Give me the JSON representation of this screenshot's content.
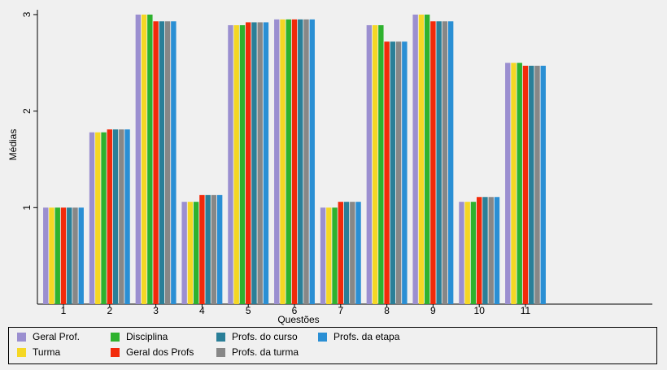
{
  "chart_data": {
    "type": "bar",
    "xlabel": "Questões",
    "ylabel": "Médias",
    "ylim": [
      0,
      3.05
    ],
    "yticks": [
      1,
      2,
      3
    ],
    "categories": [
      "1",
      "2",
      "3",
      "4",
      "5",
      "6",
      "7",
      "8",
      "9",
      "10",
      "11"
    ],
    "grid": false,
    "legend_position": "bottom",
    "series": [
      {
        "name": "Geral Prof.",
        "color": "#9b8fd0",
        "values": [
          1.0,
          1.78,
          3.0,
          1.06,
          2.89,
          2.95,
          1.0,
          2.89,
          3.0,
          1.06,
          2.5
        ]
      },
      {
        "name": "Turma",
        "color": "#f5d724",
        "values": [
          1.0,
          1.78,
          3.0,
          1.06,
          2.89,
          2.95,
          1.0,
          2.89,
          3.0,
          1.06,
          2.5
        ]
      },
      {
        "name": "Disciplina",
        "color": "#2eb22e",
        "values": [
          1.0,
          1.78,
          3.0,
          1.06,
          2.89,
          2.95,
          1.0,
          2.89,
          3.0,
          1.06,
          2.5
        ]
      },
      {
        "name": "Geral dos Profs",
        "color": "#f22a0a",
        "values": [
          1.0,
          1.81,
          2.93,
          1.13,
          2.92,
          2.95,
          1.06,
          2.72,
          2.93,
          1.11,
          2.47
        ]
      },
      {
        "name": "Profs. do curso",
        "color": "#2a7f98",
        "values": [
          1.0,
          1.81,
          2.93,
          1.13,
          2.92,
          2.95,
          1.06,
          2.72,
          2.93,
          1.11,
          2.47
        ]
      },
      {
        "name": "Profs. da turma",
        "color": "#878787",
        "values": [
          1.0,
          1.81,
          2.93,
          1.13,
          2.92,
          2.95,
          1.06,
          2.72,
          2.93,
          1.11,
          2.47
        ]
      },
      {
        "name": "Profs. da etapa",
        "color": "#2a8fd4",
        "values": [
          1.0,
          1.81,
          2.93,
          1.13,
          2.92,
          2.95,
          1.06,
          2.72,
          2.93,
          1.11,
          2.47
        ]
      }
    ]
  }
}
